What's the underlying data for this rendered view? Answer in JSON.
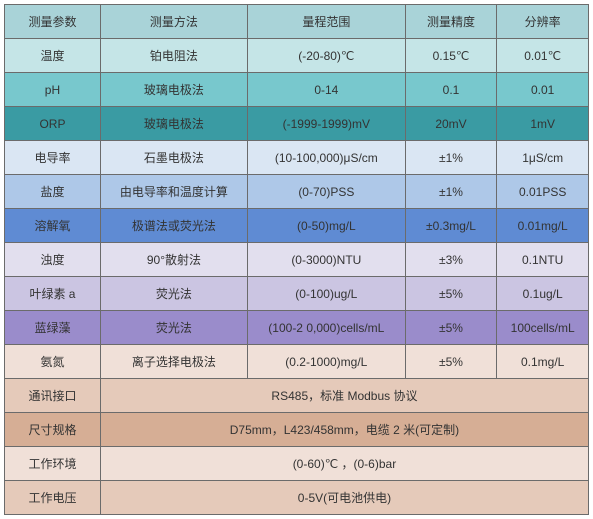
{
  "table": {
    "headers": [
      "测量参数",
      "测量方法",
      "量程范围",
      "测量精度",
      "分辨率"
    ],
    "header_bg": "#a9d3d8",
    "param_rows": [
      {
        "bg": "#c5e5e7",
        "cells": [
          "温度",
          "铂电阻法",
          "(-20-80)℃",
          "0.15℃",
          "0.01℃"
        ]
      },
      {
        "bg": "#78c8cd",
        "cells": [
          "pH",
          "玻璃电极法",
          "0-14",
          "0.1",
          "0.01"
        ]
      },
      {
        "bg": "#3a9ba3",
        "cells": [
          "ORP",
          "玻璃电极法",
          "(-1999-1999)mV",
          "20mV",
          "1mV"
        ]
      },
      {
        "bg": "#dae6f3",
        "cells": [
          "电导率",
          "石墨电极法",
          "(10-100,000)μS/cm",
          "±1%",
          "1μS/cm"
        ]
      },
      {
        "bg": "#aec8e8",
        "cells": [
          "盐度",
          "由电导率和温度计算",
          "(0-70)PSS",
          "±1%",
          "0.01PSS"
        ]
      },
      {
        "bg": "#5f8bd3",
        "cells": [
          "溶解氧",
          "极谱法或荧光法",
          "(0-50)mg/L",
          "±0.3mg/L",
          "0.01mg/L"
        ]
      },
      {
        "bg": "#e2dfee",
        "cells": [
          "浊度",
          "90°散射法",
          "(0-3000)NTU",
          "±3%",
          "0.1NTU"
        ]
      },
      {
        "bg": "#cbc5e2",
        "cells": [
          "叶绿素 a",
          "荧光法",
          "(0-100)ug/L",
          "±5%",
          "0.1ug/L"
        ]
      },
      {
        "bg": "#9a8ccb",
        "cells": [
          "蓝绿藻",
          "荧光法",
          "(100-2 0,000)cells/mL",
          "±5%",
          "100cells/mL"
        ]
      },
      {
        "bg": "#f0e0d8",
        "cells": [
          "氨氮",
          "离子选择电极法",
          "(0.2-1000)mg/L",
          "±5%",
          "0.1mg/L"
        ]
      }
    ],
    "merged_rows": [
      {
        "bg": "#e5caba",
        "label": "通讯接口",
        "value": "RS485，标准 Modbus 协议"
      },
      {
        "bg": "#d6ae95",
        "label": "尺寸规格",
        "value": "D75mm，L423/458mm，电缆 2 米(可定制)"
      },
      {
        "bg": "#f0e0d8",
        "label": "工作环境",
        "value": "(0-60)℃ ，(0-6)bar"
      },
      {
        "bg": "#e5caba",
        "label": "工作电压",
        "value": "0-5V(可电池供电)"
      }
    ]
  }
}
